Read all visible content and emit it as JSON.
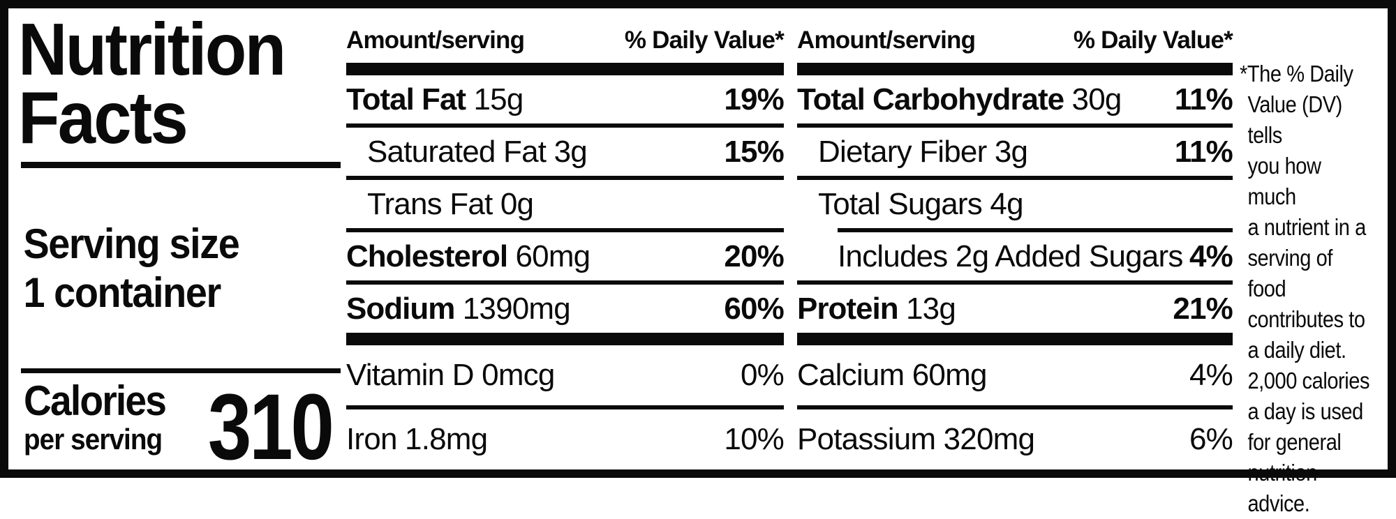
{
  "label": {
    "title_line1": "Nutrition",
    "title_line2": "Facts",
    "serving": {
      "label": "Serving size",
      "value": "1 container"
    },
    "calories": {
      "label_line1": "Calories",
      "label_line2": "per serving",
      "value": "310"
    },
    "columns": [
      {
        "header": {
          "amount": "Amount/serving",
          "daily_value": "% Daily Value*"
        },
        "rows": [
          {
            "name": "Total Fat",
            "amount": "15g",
            "dv": "19%",
            "name_bold": true,
            "dv_bold": true,
            "indent": 0
          },
          {
            "name": "Saturated Fat",
            "amount": "3g",
            "dv": "15%",
            "name_bold": false,
            "dv_bold": true,
            "indent": 1
          },
          {
            "name": "Trans Fat",
            "amount": "0g",
            "dv": "",
            "name_bold": false,
            "dv_bold": false,
            "indent": 1
          },
          {
            "name": "Cholesterol",
            "amount": "60mg",
            "dv": "20%",
            "name_bold": true,
            "dv_bold": true,
            "indent": 0
          },
          {
            "name": "Sodium",
            "amount": "1390mg",
            "dv": "60%",
            "name_bold": true,
            "dv_bold": true,
            "indent": 0
          }
        ],
        "vitamins": [
          {
            "name": "Vitamin D",
            "amount": "0mcg",
            "dv": "0%"
          },
          {
            "name": "Iron",
            "amount": "1.8mg",
            "dv": "10%"
          }
        ]
      },
      {
        "header": {
          "amount": "Amount/serving",
          "daily_value": "% Daily Value*"
        },
        "rows": [
          {
            "name": "Total Carbohydrate",
            "amount": "30g",
            "dv": "11%",
            "name_bold": true,
            "dv_bold": true,
            "indent": 0
          },
          {
            "name": "Dietary Fiber",
            "amount": "3g",
            "dv": "11%",
            "name_bold": false,
            "dv_bold": true,
            "indent": 1
          },
          {
            "name": "Total Sugars",
            "amount": "4g",
            "dv": "",
            "name_bold": false,
            "dv_bold": false,
            "indent": 1
          },
          {
            "name": "Includes 2g Added Sugars",
            "amount": "",
            "dv": "4%",
            "name_bold": false,
            "dv_bold": true,
            "indent": 2,
            "indent_rule_above": true
          },
          {
            "name": "Protein",
            "amount": "13g",
            "dv": "21%",
            "name_bold": true,
            "dv_bold": true,
            "indent": 0
          }
        ],
        "vitamins": [
          {
            "name": "Calcium",
            "amount": "60mg",
            "dv": "4%"
          },
          {
            "name": "Potassium",
            "amount": "320mg",
            "dv": "6%"
          }
        ]
      }
    ],
    "footnote_lines": [
      "*The % Daily",
      "Value (DV) tells",
      "you how much",
      "a nutrient in a",
      "serving of food",
      "contributes to",
      "a daily diet.",
      "2,000 calories",
      "a day is used",
      "for general",
      "nutrition",
      "advice."
    ]
  }
}
